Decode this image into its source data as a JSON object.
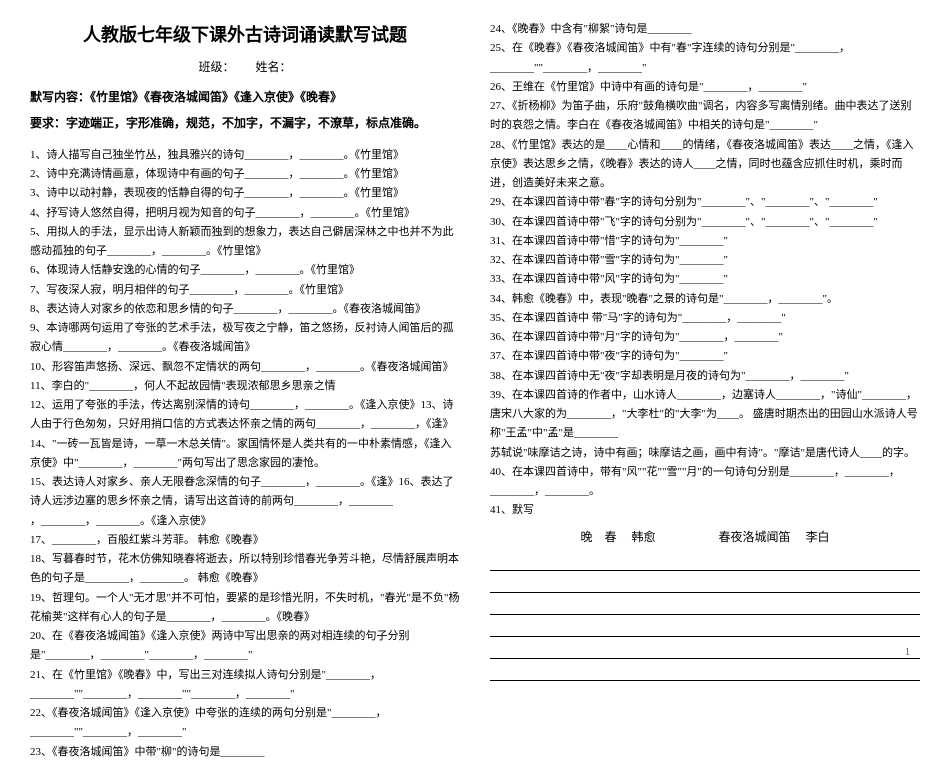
{
  "title": "人教版七年级下课外古诗词诵读默写试题",
  "subtitle_class": "班级：",
  "subtitle_name": "姓名：",
  "intro1": "默写内容：《竹里馆》《春夜洛城闻笛》《逢入京使》《晚春》",
  "intro2": "要求：字迹端正，字形准确，规范，不加字，不漏字，不潦草，标点准确。",
  "left": [
    "1、诗人描写自己独坐竹丛，独具雅兴的诗句________，________。《竹里馆》",
    "2、诗中充满诗情画意，体现诗中有画的句子________，________。《竹里馆》",
    "3、诗中以动衬静，表现夜的恬静自得的句子________，________。《竹里馆》",
    "4、抒写诗人悠然自得，把明月视为知音的句子________，________。《竹里馆》",
    "5、用拟人的手法，显示出诗人新颖而独到的想象力，表达自己僻居深林之中也并不为此感动孤独的句子________，________。《竹里馆》",
    "6、体现诗人恬静安逸的心情的句子________，________。《竹里馆》",
    "7、写夜深人寂，明月相伴的句子________，________。《竹里馆》",
    "8、表达诗人对家乡的依恋和思乡情的句子________，________。《春夜洛城闻笛》",
    "9、本诗哪两句运用了夸张的艺术手法，极写夜之宁静，笛之悠扬，反衬诗人闻笛后的孤寂心情________，________。《春夜洛城闻笛》",
    "10、形容笛声悠扬、深远、飘忽不定情状的两句________，________。《春夜洛城闻笛》",
    "11、李白的\"________，何人不起故园情\"表现浓郁思乡思亲之情",
    "12、运用了夸张的手法，传达离别深情的诗句________，________。《逢入京使》13、诗人由于行色匆匆，只好用捎口信的方式表达怀亲之情的两句________，________，《逢》",
    "14、\"一砖一瓦皆是诗，一草一木总关情\"。家国情怀是人类共有的一中朴素情感，《逢入京使》中\"________，________\"两句写出了思念家园的凄怆。",
    "15、表达诗人对家乡、亲人无限眷念深情的句子________，________。《逢》16、表达了诗人远涉边塞的思乡怀亲之情，请写出这首诗的前两句________，________",
    "，________，________。《逢入京使》",
    "17、________，百般红紫斗芳菲。 韩愈《晚春》",
    "18、写暮春时节，花木仿佛知晓春将逝去，所以特别珍惜春光争芳斗艳，尽情舒展声明本色的句子是________，________。 韩愈《晚春》",
    "19、哲理句。一个人\"无才思\"并不可怕，要紧的是珍惜光阴，不失时机，\"春光\"是不负\"杨花榆荚\"这样有心人的句子是________，________。《晚春》",
    "20、在《春夜洛城闻笛》《逢入京使》两诗中写出思亲的两对相连续的句子分别是\"________，________\"________，________\"",
    "21、在《竹里馆》《晚春》中，写出三对连续拟人诗句分别是\"________，________\"\"________，________\"\"________，________\"",
    "22、《春夜洛城闻笛》《逢入京使》中夸张的连续的两句分别是\"________，________\"\"________，________\"",
    "23、《春夜洛城闻笛》中带\"柳\"的诗句是________"
  ],
  "right": [
    "24、《晚春》中含有\"柳絮\"诗句是________",
    "25、在《晚春》《春夜洛城闻笛》中有\"春\"字连续的诗句分别是\"________，________\"\"________，________\"",
    "26、王维在《竹里馆》中诗中有画的诗句是\"________，________\"",
    "27、《折杨柳》为笛子曲，乐府\"鼓角横吹曲\"调名，内容多写离情别绪。曲中表达了送别时的哀怨之情。李白在《春夜洛城闻笛》中相关的诗句是\"________\"",
    "28、《竹里馆》表达的是____心情和____的情绪，《春夜洛城闻笛》表达____之情，《逢入京使》表达思乡之情，《晚春》表达的诗人____之情，同时也蕴含应抓住时机，乘时而进，创造美好未来之意。",
    "29、在本课四首诗中带\"春\"字的诗句分别为\"________\"、\"________\"、\"________\"",
    "30、在本课四首诗中带\"飞\"字的诗句分别为\"________\"、\"________\"、\"________\"",
    "31、在本课四首诗中带\"惜\"字的诗句为\"________\"",
    "32、在本课四首诗中带\"雪\"字的诗句为\"________\"",
    "33、在本课四首诗中带\"风\"字的诗句为\"________\"",
    "34、韩愈《晚春》中，表现\"晚春\"之景的诗句是\"________，________\"。",
    "35、在本课四首诗中 带\"马\"字的诗句为\"________，________\"",
    "36、在本课四首诗中带\"月\"字的诗句为\"________，________\"",
    "37、在本课四首诗中带\"夜\"字的诗句为\"________\"",
    "38、在本课四首诗中无\"夜\"字却表明是月夜的诗句为\"________，________\"",
    "39、在本课四首诗的作者中，山水诗人________，边塞诗人________，\"诗仙\"________，唐宋八大家的为________，\"大李杜\"的\"大李\"为____。 盛唐时期杰出的田园山水派诗人号称\"王孟\"中\"孟\"是________",
    "苏轼说\"味摩诘之诗，诗中有画；味摩诘之画，画中有诗\"。\"摩诘\"是唐代诗人____的字。",
    "40、在本课四首诗中，带有\"风\"\"花\"\"雪\"\"月\"的一句诗句分别是________，________，________，________。"
  ],
  "q41": "41、默写",
  "poem1_title": "晚　春",
  "poem1_author": "韩愈",
  "poem2_title": "春夜洛城闻笛",
  "poem2_author": "李白",
  "page_num": "1"
}
